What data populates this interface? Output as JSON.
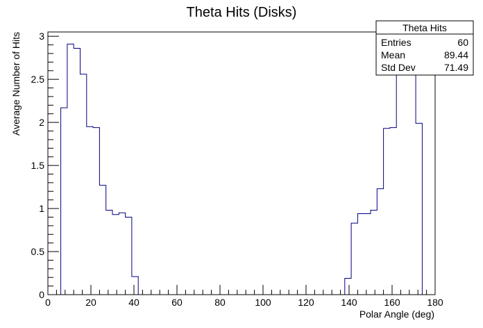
{
  "chart_data": {
    "type": "histogram",
    "title": "Theta Hits (Disks)",
    "xlabel": "Polar Angle (deg)",
    "ylabel": "Average Number of Hits",
    "xlim": [
      0,
      180
    ],
    "ylim": [
      0,
      3.05
    ],
    "bin_width": 3,
    "x_ticks": [
      "0",
      "20",
      "40",
      "60",
      "80",
      "100",
      "120",
      "140",
      "160",
      "180"
    ],
    "y_ticks": [
      "0",
      "0.5",
      "1",
      "1.5",
      "2",
      "2.5",
      "3"
    ],
    "bins": [
      {
        "x0": 6,
        "value": 2.17
      },
      {
        "x0": 9,
        "value": 2.91
      },
      {
        "x0": 12,
        "value": 2.86
      },
      {
        "x0": 15,
        "value": 2.56
      },
      {
        "x0": 18,
        "value": 1.95
      },
      {
        "x0": 21,
        "value": 1.94
      },
      {
        "x0": 24,
        "value": 1.27
      },
      {
        "x0": 27,
        "value": 0.98
      },
      {
        "x0": 30,
        "value": 0.93
      },
      {
        "x0": 33,
        "value": 0.95
      },
      {
        "x0": 36,
        "value": 0.9
      },
      {
        "x0": 39,
        "value": 0.21
      },
      {
        "x0": 42,
        "value": 0
      },
      {
        "x0": 138,
        "value": 0.19
      },
      {
        "x0": 141,
        "value": 0.83
      },
      {
        "x0": 144,
        "value": 0.94
      },
      {
        "x0": 147,
        "value": 0.94
      },
      {
        "x0": 150,
        "value": 0.98
      },
      {
        "x0": 153,
        "value": 1.23
      },
      {
        "x0": 156,
        "value": 1.93
      },
      {
        "x0": 159,
        "value": 1.94
      },
      {
        "x0": 162,
        "value": 2.56
      },
      {
        "x0": 165,
        "value": 2.86
      },
      {
        "x0": 168,
        "value": 2.91
      },
      {
        "x0": 171,
        "value": 1.99
      }
    ],
    "line_color": "#000080"
  },
  "stats_box": {
    "name": "Theta Hits",
    "rows": [
      {
        "label": "Entries",
        "value": "60"
      },
      {
        "label": "Mean",
        "value": "89.44"
      },
      {
        "label": "Std Dev",
        "value": "71.49"
      }
    ]
  }
}
